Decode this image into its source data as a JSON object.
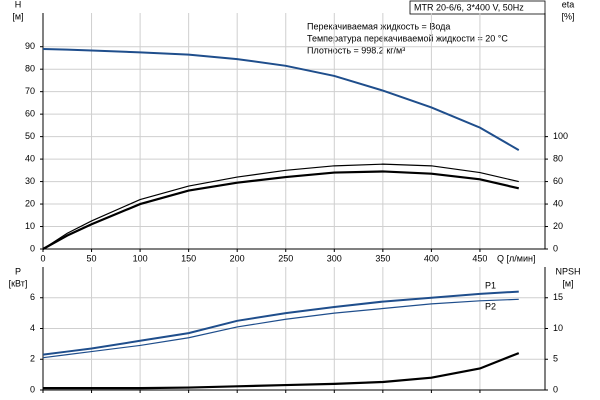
{
  "chart_data": [
    {
      "type": "line",
      "title": "MTR 20-6/6, 3*400 V, 50Hz",
      "annotations": [
        "Перекачиваемая жидкость = Вода",
        "Температура перекачиваемой жидкости = 20 °C",
        "Плотность = 998.2 кг/м³"
      ],
      "ylabel": "H",
      "yunit": "[м]",
      "y2label": "eta",
      "y2unit": "[%]",
      "xlabel": "Q [л/мин]",
      "x": [
        0,
        25,
        50,
        100,
        150,
        200,
        250,
        300,
        350,
        400,
        450,
        490
      ],
      "xlim": [
        0,
        517
      ],
      "xticks": [
        0,
        50,
        100,
        150,
        200,
        250,
        300,
        350,
        400,
        450
      ],
      "ylim": [
        0,
        105
      ],
      "yticks": [
        0,
        10,
        20,
        30,
        40,
        50,
        60,
        70,
        80,
        90
      ],
      "y2lim": [
        0,
        210
      ],
      "y2ticks": [
        0,
        20,
        40,
        60,
        80,
        100
      ],
      "grid": true,
      "series": [
        {
          "color": "#1f4e8c",
          "width": 2,
          "values": [
            89,
            88.7,
            88.3,
            87.5,
            86.5,
            84.5,
            81.5,
            77,
            70.5,
            63,
            54,
            44
          ]
        },
        {
          "color": "#000000",
          "width": 1.2,
          "axis": "y2",
          "values": [
            0,
            14,
            25,
            44,
            56,
            64,
            70,
            74,
            75.5,
            74,
            68,
            60
          ]
        },
        {
          "color": "#000000",
          "width": 2.2,
          "axis": "y2",
          "values": [
            0,
            12,
            22,
            40,
            52,
            59,
            64,
            68,
            69,
            67,
            62,
            54
          ]
        }
      ]
    },
    {
      "type": "line",
      "ylabel": "P",
      "yunit": "[кВт]",
      "y2label": "NPSH",
      "y2unit": "[м]",
      "x": [
        0,
        25,
        50,
        100,
        150,
        200,
        250,
        300,
        350,
        400,
        450,
        490
      ],
      "xlim": [
        0,
        517
      ],
      "xticks": [
        0,
        50,
        100,
        150,
        200,
        250,
        300,
        350,
        400,
        450
      ],
      "ylim": [
        0,
        8
      ],
      "yticks": [
        0,
        2,
        4,
        6
      ],
      "y2lim": [
        0,
        20
      ],
      "y2ticks": [
        0,
        5,
        10,
        15
      ],
      "grid": true,
      "series": [
        {
          "name": "P1",
          "color": "#1f4e8c",
          "width": 2,
          "values": [
            2.3,
            2.5,
            2.7,
            3.2,
            3.7,
            4.5,
            5.0,
            5.4,
            5.75,
            6.0,
            6.25,
            6.4
          ]
        },
        {
          "name": "P2",
          "color": "#1f4e8c",
          "width": 1.2,
          "values": [
            2.1,
            2.3,
            2.5,
            2.9,
            3.4,
            4.1,
            4.6,
            5.0,
            5.3,
            5.6,
            5.8,
            5.9
          ]
        },
        {
          "color": "#000000",
          "width": 2.2,
          "axis": "y2",
          "values": [
            0.3,
            0.3,
            0.3,
            0.3,
            0.4,
            0.6,
            0.8,
            1.0,
            1.3,
            2.0,
            3.5,
            6.0
          ]
        }
      ]
    }
  ]
}
